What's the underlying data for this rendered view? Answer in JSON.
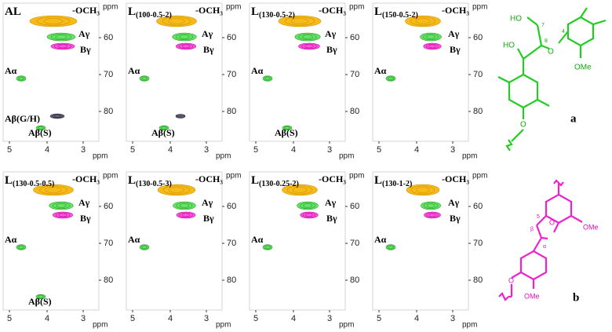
{
  "axis": {
    "unit": "ppm",
    "x_ticks": [
      5,
      4,
      3
    ],
    "y_ticks": [
      60,
      70,
      80
    ]
  },
  "panels": [
    {
      "title": "AL",
      "labels": {
        "och3": "-OCH₃",
        "a_gamma": "Aγ",
        "b_gamma": "Bγ",
        "a_alpha": "Aα",
        "ab_gh": "Aβ(G/H)",
        "ab_s": "Aβ(S)"
      }
    },
    {
      "title": "L",
      "subscript": "(100-0.5-2)",
      "labels": {
        "och3": "-OCH₃",
        "a_gamma": "Aγ",
        "b_gamma": "Bγ",
        "a_alpha": "Aα",
        "ab_s": "Aβ(S)"
      }
    },
    {
      "title": "L",
      "subscript": "(130-0.5-2)",
      "labels": {
        "och3": "-OCH₃",
        "a_gamma": "Aγ",
        "b_gamma": "Bγ",
        "a_alpha": "Aα",
        "ab_s": "Aβ(S)"
      }
    },
    {
      "title": "L",
      "subscript": "(150-0.5-2)",
      "labels": {
        "och3": "-OCH₃",
        "a_gamma": "Aγ",
        "b_gamma": "Bγ",
        "a_alpha": "Aα"
      }
    },
    {
      "title": "L",
      "subscript": "(130-0.5-0.5)",
      "labels": {
        "och3": "-OCH₃",
        "a_gamma": "Aγ",
        "b_gamma": "Bγ",
        "a_alpha": "Aα",
        "ab_s": "Aβ(S)"
      }
    },
    {
      "title": "L",
      "subscript": "(130-0.5-3)",
      "labels": {
        "och3": "-OCH₃",
        "a_gamma": "Aγ",
        "b_gamma": "Bγ",
        "a_alpha": "Aα"
      }
    },
    {
      "title": "L",
      "subscript": "(130-0.25-2)",
      "labels": {
        "och3": "-OCH₃",
        "a_gamma": "Aγ",
        "b_gamma": "Bγ",
        "a_alpha": "Aα"
      }
    },
    {
      "title": "L",
      "subscript": "(130-1-2)",
      "labels": {
        "och3": "-OCH₃",
        "a_gamma": "Aγ",
        "b_gamma": "Bγ",
        "a_alpha": "Aα"
      }
    }
  ],
  "structure_a": {
    "letter": "a",
    "ho_top": "HO",
    "ho_left": "HO",
    "o": "O",
    "ome": "OMe",
    "pos_7": "7",
    "pos_8": "8",
    "pos_4": "4"
  },
  "structure_b": {
    "letter": "b",
    "pos_5": "5",
    "beta": "β",
    "alpha": "α",
    "o": "O",
    "ome_right": "OMe",
    "ome_bottom": "OMe"
  }
}
